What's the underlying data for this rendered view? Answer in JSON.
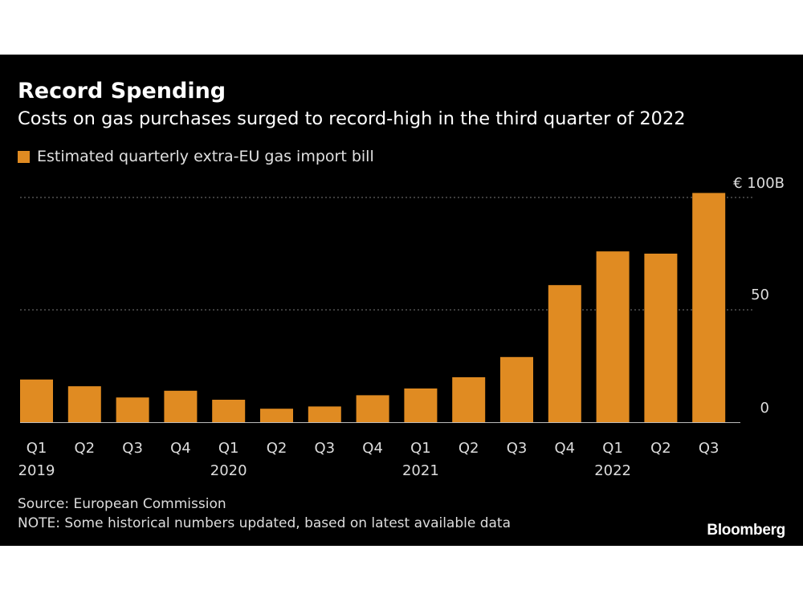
{
  "chart_data": {
    "type": "bar",
    "title": "Record Spending",
    "subtitle": "Costs on gas purchases surged to record-high in the third quarter of 2022",
    "series": [
      {
        "name": "Estimated quarterly extra-EU gas import bill",
        "values": [
          19,
          16,
          11,
          14,
          10,
          6,
          7,
          12,
          15,
          20,
          29,
          61,
          76,
          75,
          102
        ]
      }
    ],
    "categories": [
      "Q1 2019",
      "Q2 2019",
      "Q3 2019",
      "Q4 2019",
      "Q1 2020",
      "Q2 2020",
      "Q3 2020",
      "Q4 2020",
      "Q1 2021",
      "Q2 2021",
      "Q3 2021",
      "Q4 2021",
      "Q1 2022",
      "Q2 2022",
      "Q3 2022"
    ],
    "quarter_labels": [
      "Q1",
      "Q2",
      "Q3",
      "Q4",
      "Q1",
      "Q2",
      "Q3",
      "Q4",
      "Q1",
      "Q2",
      "Q3",
      "Q4",
      "Q1",
      "Q2",
      "Q3"
    ],
    "year_labels": [
      "2019",
      "",
      "",
      "",
      "2020",
      "",
      "",
      "",
      "2021",
      "",
      "",
      "",
      "2022",
      "",
      ""
    ],
    "y_ticks": [
      {
        "value": 0,
        "label": "0"
      },
      {
        "value": 50,
        "label": "50"
      },
      {
        "value": 100,
        "label": "€ 100B"
      }
    ],
    "ylim": [
      0,
      100
    ],
    "xlabel": "",
    "ylabel": "",
    "grid": true,
    "legend_position": "top-left",
    "colors": {
      "bar": "#e08b22",
      "background": "#000000",
      "grid": "#7a7a7a",
      "axis": "#bbbbbb"
    }
  },
  "footer": {
    "source": "Source: European Commission",
    "note": "NOTE: Some historical numbers updated, based on latest available data",
    "brand": "Bloomberg"
  }
}
